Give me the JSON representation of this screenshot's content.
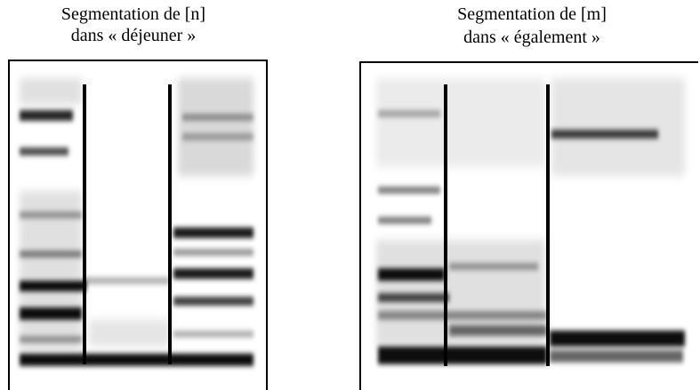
{
  "panels": [
    {
      "title": [
        "Segmentation de [n]",
        "dans « déjeuner »"
      ]
    },
    {
      "title": [
        "Segmentation de [m]",
        "dans « également »"
      ]
    }
  ]
}
